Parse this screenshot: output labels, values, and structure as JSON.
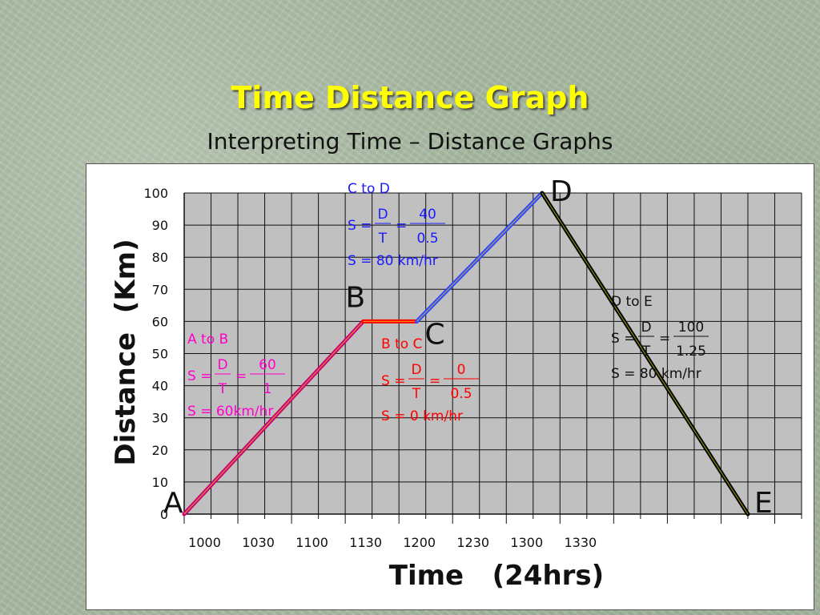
{
  "slide": {
    "title": "Time Distance Graph",
    "subtitle": "Interpreting Time – Distance Graphs"
  },
  "colors": {
    "title": "#ffff00",
    "plot_bg": "#c0c0c0",
    "a_to_b": "#cc0077",
    "b_to_c": "#ff0000",
    "c_to_d": "#3344ff",
    "d_to_e": "#000000",
    "anno_ab": "#ff00cc",
    "anno_bc": "#ff0000",
    "anno_cd": "#1a1aff",
    "anno_de": "#111111"
  },
  "chart_data": {
    "type": "line",
    "xlabel": "Time   (24hrs)",
    "ylabel": "Distance  (Km)",
    "x_tick_labels": [
      "1000",
      "1030",
      "1100",
      "1130",
      "1200",
      "1230",
      "1300",
      "1330"
    ],
    "y_tick_labels": [
      "0",
      "10",
      "20",
      "30",
      "40",
      "50",
      "60",
      "70",
      "80",
      "90",
      "100"
    ],
    "xlim": [
      1000,
      1345
    ],
    "ylim": [
      0,
      100
    ],
    "grid": true,
    "points": [
      {
        "label": "A",
        "x": 1000,
        "y": 0
      },
      {
        "label": "B",
        "x": 1100,
        "y": 60
      },
      {
        "label": "C",
        "x": 1130,
        "y": 60
      },
      {
        "label": "D",
        "x": 1200,
        "y": 100
      },
      {
        "label": "E",
        "x": 1315,
        "y": 0
      }
    ],
    "segments": [
      {
        "from": "A",
        "to": "B",
        "color": "#cc0077"
      },
      {
        "from": "B",
        "to": "C",
        "color": "#ff0000"
      },
      {
        "from": "C",
        "to": "D",
        "color": "#3344ff"
      },
      {
        "from": "D",
        "to": "E",
        "color": "#000000"
      }
    ],
    "annotations": [
      {
        "id": "ab",
        "heading": "A to  B",
        "d_num": "D",
        "d_den": "T",
        "v_num": "60",
        "v_den": "1",
        "result": "S = 60km/hr"
      },
      {
        "id": "bc",
        "heading": "B to  C",
        "d_num": "D",
        "d_den": "T",
        "v_num": "0",
        "v_den": "0.5",
        "result": "S = 0 km/hr"
      },
      {
        "id": "cd",
        "heading": "C to  D",
        "d_num": "D",
        "d_den": "T",
        "v_num": "40",
        "v_den": "0.5",
        "result": "S = 80 km/hr"
      },
      {
        "id": "de",
        "heading": "D to  E",
        "d_num": "D",
        "d_den": "T",
        "v_num": "100",
        "v_den": "1.25",
        "result": "S = 80 km/hr"
      }
    ],
    "formula_prefix": "S =",
    "equals": "="
  }
}
